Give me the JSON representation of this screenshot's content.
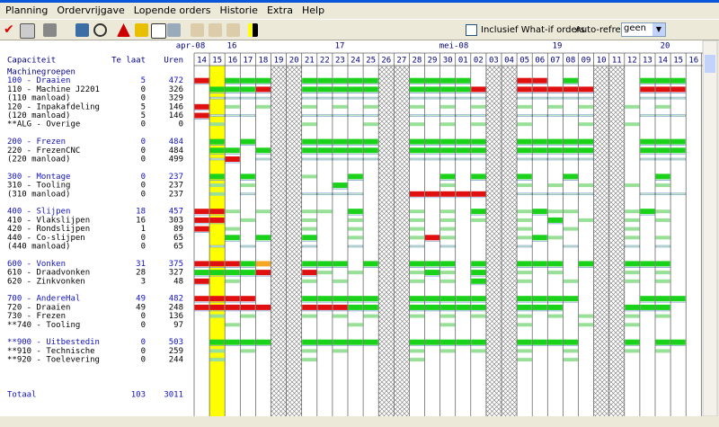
{
  "menu": [
    "Planning",
    "Ordervrijgave",
    "Lopende orders",
    "Historie",
    "Extra",
    "Help"
  ],
  "toolbar": {
    "whatif_label": "Inclusief What-if orders",
    "autorefresh_label": "Auto-refresh",
    "autorefresh_value": "geen"
  },
  "header": {
    "weeks": [
      "apr-08",
      "16",
      "17",
      "mei-08",
      "19",
      "20"
    ],
    "days": [
      "14",
      "15",
      "16",
      "17",
      "18",
      "19",
      "20",
      "21",
      "22",
      "23",
      "24",
      "25",
      "26",
      "27",
      "28",
      "29",
      "30",
      "01",
      "02",
      "03",
      "04",
      "05",
      "06",
      "07",
      "08",
      "09",
      "10",
      "11",
      "12",
      "13",
      "14",
      "15",
      "16"
    ]
  },
  "table": {
    "columns": [
      "Capaciteit",
      "Te laat",
      "Uren"
    ],
    "section_label": "Machinegroepen",
    "rows": [
      {
        "name": "100 - Draaien",
        "late": 5,
        "hours": 472
      },
      {
        "name": "110 - Machine J2201",
        "late": 0,
        "hours": 326
      },
      {
        "name": "(110 manload)",
        "late": 0,
        "hours": 329
      },
      {
        "name": "120 - Inpakafdeling",
        "late": 5,
        "hours": 146
      },
      {
        "name": "(120 manload)",
        "late": 5,
        "hours": 146
      },
      {
        "name": "**ALG - Overige",
        "late": 0,
        "hours": 0
      },
      {
        "name": "200 - Frezen",
        "late": 0,
        "hours": 484
      },
      {
        "name": "220 - FrezenCNC",
        "late": 0,
        "hours": 484
      },
      {
        "name": "(220 manload)",
        "late": 0,
        "hours": 499
      },
      {
        "name": "300 - Montage",
        "late": 0,
        "hours": 237
      },
      {
        "name": "310 - Tooling",
        "late": 0,
        "hours": 237
      },
      {
        "name": "(310 manload)",
        "late": 0,
        "hours": 237
      },
      {
        "name": "400 - Slijpen",
        "late": 18,
        "hours": 457
      },
      {
        "name": "410 - Vlakslijpen",
        "late": 16,
        "hours": 303
      },
      {
        "name": "420 - Rondslijpen",
        "late": 1,
        "hours": 89
      },
      {
        "name": "440 - Co-slijpen",
        "late": 0,
        "hours": 65
      },
      {
        "name": "(440 manload)",
        "late": 0,
        "hours": 65
      },
      {
        "name": "600 - Vonken",
        "late": 31,
        "hours": 375
      },
      {
        "name": "610 - Draadvonken",
        "late": 28,
        "hours": 327
      },
      {
        "name": "620 - Zinkvonken",
        "late": 3,
        "hours": 48
      },
      {
        "name": "700 - AndereHal",
        "late": 49,
        "hours": 482
      },
      {
        "name": "720 - Draaien",
        "late": 49,
        "hours": 248
      },
      {
        "name": "730 - Frezen",
        "late": 0,
        "hours": 136
      },
      {
        "name": "**740 - Tooling",
        "late": 0,
        "hours": 97
      },
      {
        "name": "**900 - Uitbestedin",
        "late": 0,
        "hours": 503
      },
      {
        "name": "**910 - Technische",
        "late": 0,
        "hours": 259
      },
      {
        "name": "**920 - Toelevering",
        "late": 0,
        "hours": 244
      }
    ],
    "total": {
      "name": "Totaal",
      "late": 103,
      "hours": 3011
    }
  }
}
